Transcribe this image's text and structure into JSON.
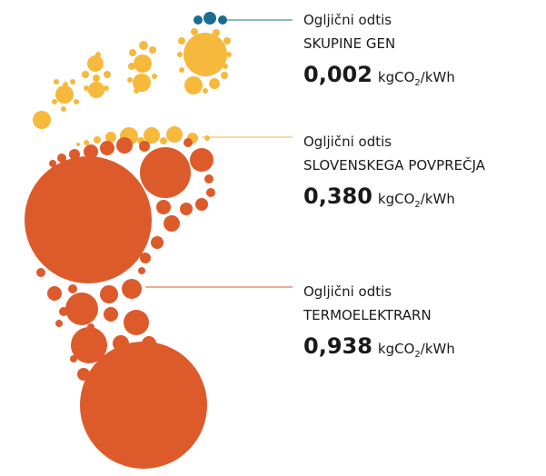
{
  "items": [
    {
      "label": "Ogljični odtis",
      "subject": "SKUPINE GEN",
      "value": "0,002",
      "unit": "kgCO",
      "unit_sub": "2",
      "unit_tail": "/kWh"
    },
    {
      "label": "Ogljični odtis",
      "subject": "SLOVENSKEGA POVPREČJA",
      "value": "0,380",
      "unit": "kgCO",
      "unit_sub": "2",
      "unit_tail": "/kWh"
    },
    {
      "label": "Ogljični odtis",
      "subject": "TERMOELEKTRARN",
      "value": "0,938",
      "unit": "kgCO",
      "unit_sub": "2",
      "unit_tail": "/kWh"
    }
  ]
}
